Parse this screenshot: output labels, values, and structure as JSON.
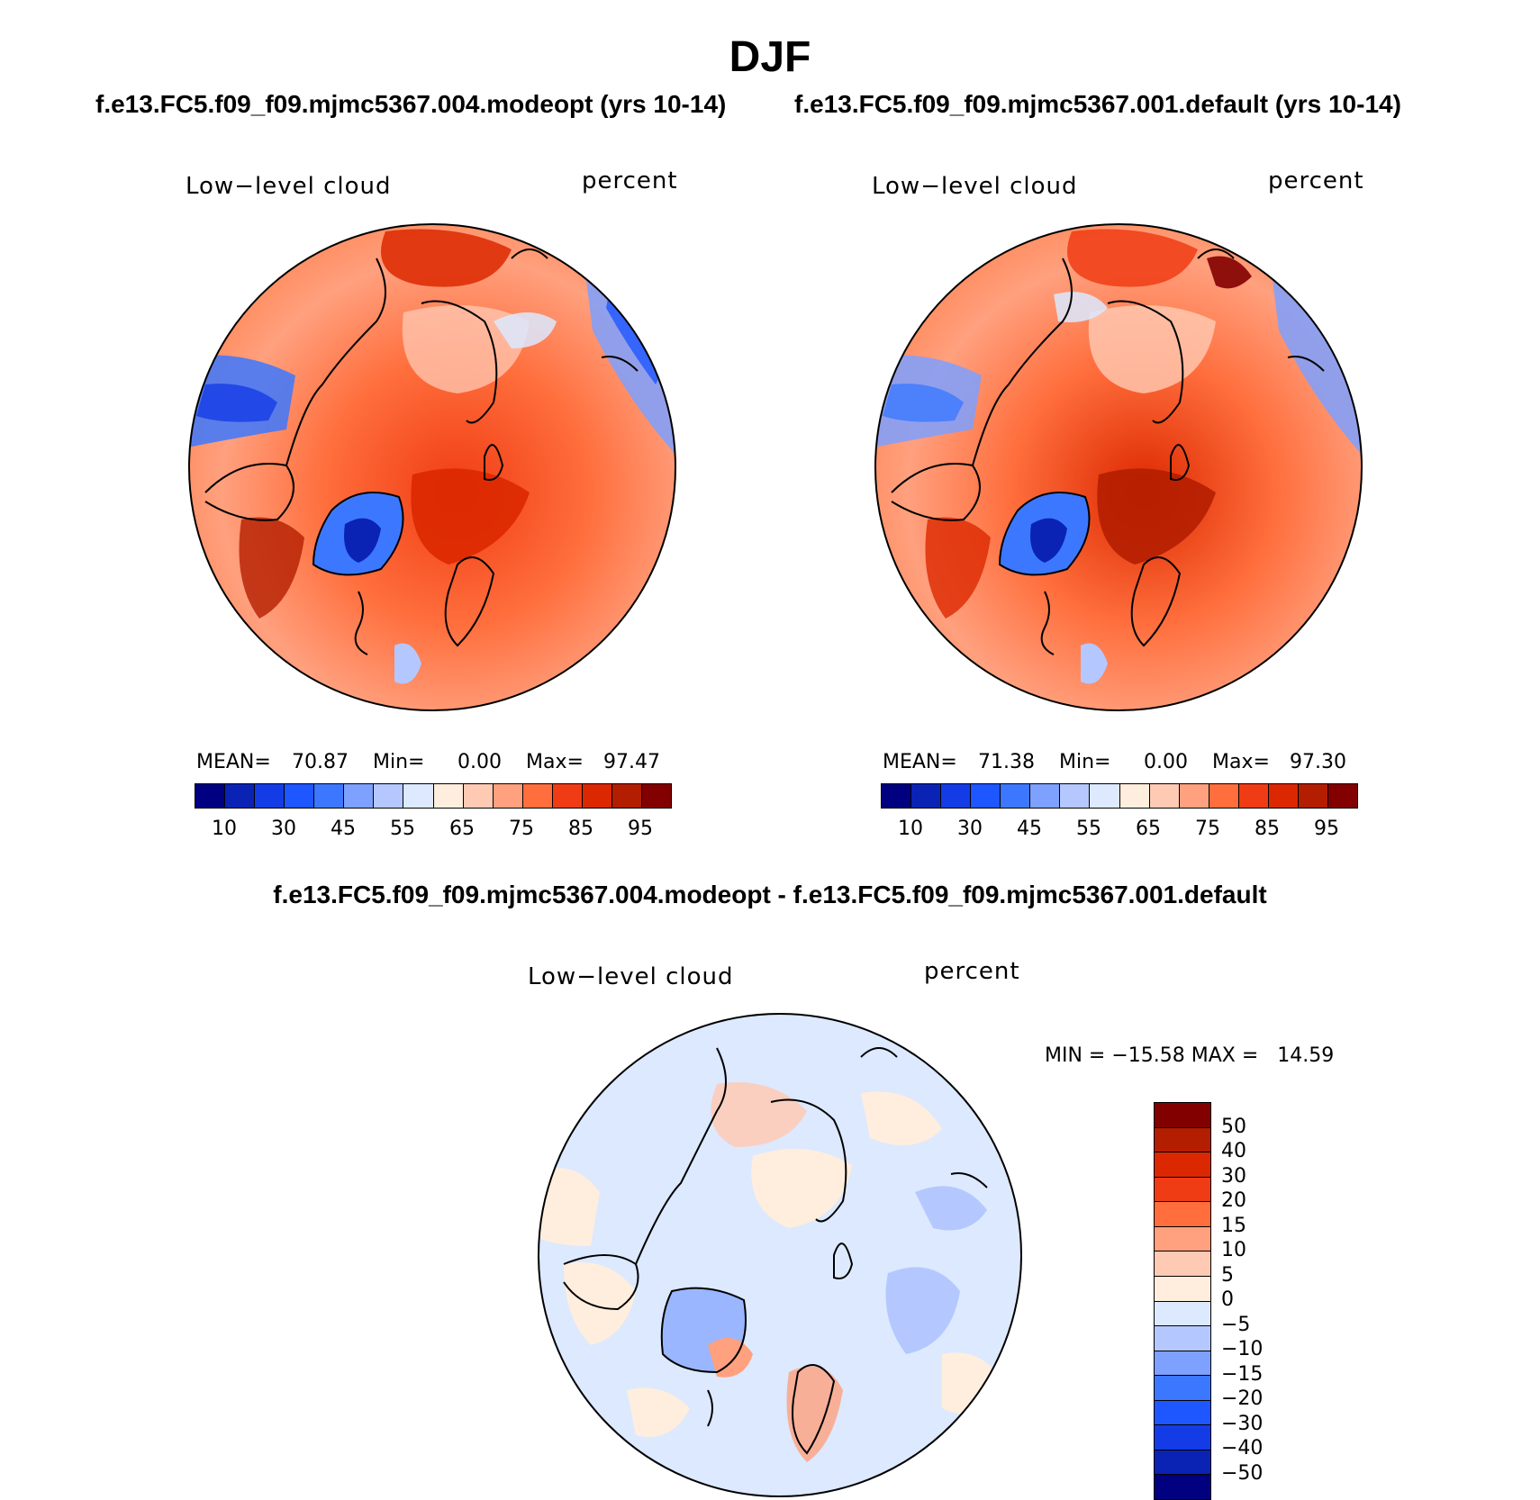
{
  "title": "DJF",
  "panels": {
    "left": {
      "header": "f.e13.FC5.f09_f09.mjmc5367.004.modeopt (yrs 10-14)",
      "variable": "Low−level cloud",
      "units": "percent",
      "mean_label": "MEAN=",
      "mean": "70.87",
      "min_label": "Min=",
      "min": "0.00",
      "max_label": "Max=",
      "max": "97.47"
    },
    "right": {
      "header": "f.e13.FC5.f09_f09.mjmc5367.001.default (yrs 10-14)",
      "variable": "Low−level cloud",
      "units": "percent",
      "mean_label": "MEAN=",
      "mean": "71.38",
      "min_label": "Min=",
      "min": "0.00",
      "max_label": "Max=",
      "max": "97.30"
    },
    "diff": {
      "header": "f.e13.FC5.f09_f09.mjmc5367.004.modeopt - f.e13.FC5.f09_f09.mjmc5367.001.default",
      "variable": "Low−level cloud",
      "units": "percent",
      "minmax": "MIN = −15.58 MAX =   14.59"
    }
  },
  "colorbar_abs": {
    "ticks": [
      "10",
      "30",
      "45",
      "55",
      "65",
      "75",
      "85",
      "95"
    ],
    "colors": [
      "#000080",
      "#0a23b4",
      "#143ce6",
      "#1e56ff",
      "#3c78ff",
      "#7ea0ff",
      "#b4c8ff",
      "#dce9ff",
      "#ffeedd",
      "#ffcab4",
      "#ffa07e",
      "#ff6e3c",
      "#f03c14",
      "#dc2800",
      "#b41e00",
      "#820000"
    ]
  },
  "colorbar_diff": {
    "ticks": [
      "50",
      "40",
      "30",
      "20",
      "15",
      "10",
      "5",
      "0",
      "−5",
      "−10",
      "−15",
      "−20",
      "−30",
      "−40",
      "−50"
    ],
    "colors": [
      "#820000",
      "#b41e00",
      "#dc2800",
      "#f03c14",
      "#ff6e3c",
      "#ffa07e",
      "#ffcab4",
      "#ffeedd",
      "#dce9ff",
      "#b4c8ff",
      "#7ea0ff",
      "#3c78ff",
      "#1e56ff",
      "#143ce6",
      "#0a23b4",
      "#000080"
    ]
  }
}
